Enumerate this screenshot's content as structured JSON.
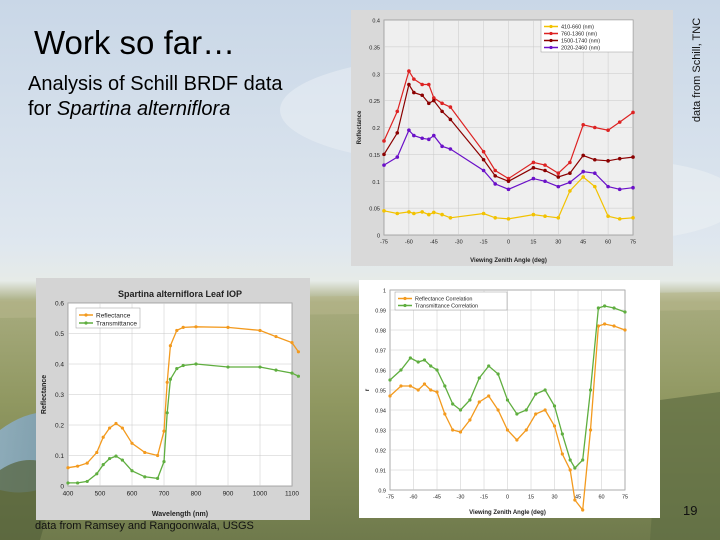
{
  "slide": {
    "title": "Work so far…",
    "subtitle_line1": "Analysis of Schill BRDF data",
    "subtitle_line2_prefix": "for ",
    "subtitle_line2_italic": "Spartina alterniflora",
    "credit_right": "data from Schill, TNC",
    "credit_bottom": "data from Ramsey and Rangoonwala, USGS",
    "page_number": "19"
  },
  "chart_data": [
    {
      "type": "line",
      "title": "",
      "xlabel": "Viewing Zenith Angle (deg)",
      "ylabel": "Reflectance",
      "xlim": [
        -75,
        75
      ],
      "ylim": [
        0,
        0.4
      ],
      "xticks": [
        "-75",
        "-60",
        "-45",
        "-30",
        "-15",
        "0",
        "15",
        "30",
        "45",
        "60",
        "75"
      ],
      "yticks": [
        "0",
        "0.05",
        "0.1",
        "0.15",
        "0.2",
        "0.25",
        "0.3",
        "0.35",
        "0.4"
      ],
      "grid": true,
      "legend_position": "top-right",
      "series": [
        {
          "name": "410-660 (nm)",
          "color": "#f2c200",
          "x": [
            -75,
            -67,
            -60,
            -57,
            -52,
            -48,
            -45,
            -40,
            -35,
            -15,
            -8,
            0,
            15,
            22,
            30,
            37,
            45,
            52,
            60,
            67,
            75
          ],
          "y": [
            0.045,
            0.04,
            0.043,
            0.04,
            0.043,
            0.038,
            0.042,
            0.038,
            0.032,
            0.04,
            0.032,
            0.03,
            0.038,
            0.035,
            0.032,
            0.082,
            0.108,
            0.09,
            0.035,
            0.03,
            0.032
          ]
        },
        {
          "name": "760-1360 (nm)",
          "color": "#dd2222",
          "x": [
            -75,
            -67,
            -60,
            -57,
            -52,
            -48,
            -45,
            -40,
            -35,
            -15,
            -8,
            0,
            15,
            22,
            30,
            37,
            45,
            52,
            60,
            67,
            75
          ],
          "y": [
            0.175,
            0.23,
            0.305,
            0.29,
            0.28,
            0.28,
            0.255,
            0.245,
            0.238,
            0.155,
            0.12,
            0.105,
            0.135,
            0.13,
            0.115,
            0.135,
            0.205,
            0.2,
            0.195,
            0.21,
            0.228
          ]
        },
        {
          "name": "1500-1740 (nm)",
          "color": "#8b0000",
          "x": [
            -75,
            -67,
            -60,
            -57,
            -52,
            -48,
            -45,
            -40,
            -35,
            -15,
            -8,
            0,
            15,
            22,
            30,
            37,
            45,
            52,
            60,
            67,
            75
          ],
          "y": [
            0.15,
            0.19,
            0.28,
            0.265,
            0.26,
            0.245,
            0.25,
            0.23,
            0.215,
            0.14,
            0.11,
            0.1,
            0.125,
            0.12,
            0.108,
            0.115,
            0.148,
            0.14,
            0.138,
            0.142,
            0.145
          ]
        },
        {
          "name": "2020-2460 (nm)",
          "color": "#6a10c8",
          "x": [
            -75,
            -67,
            -60,
            -57,
            -52,
            -48,
            -45,
            -40,
            -35,
            -15,
            -8,
            0,
            15,
            22,
            30,
            37,
            45,
            52,
            60,
            67,
            75
          ],
          "y": [
            0.13,
            0.145,
            0.195,
            0.185,
            0.18,
            0.178,
            0.185,
            0.165,
            0.16,
            0.12,
            0.095,
            0.085,
            0.105,
            0.1,
            0.09,
            0.098,
            0.118,
            0.115,
            0.09,
            0.085,
            0.088
          ]
        }
      ]
    },
    {
      "type": "line",
      "title": "Spartina alterniflora Leaf IOP",
      "xlabel": "Wavelength (nm)",
      "ylabel": "Reflectance",
      "xlim": [
        400,
        1100
      ],
      "ylim": [
        0,
        0.6
      ],
      "xticks": [
        "400",
        "500",
        "600",
        "700",
        "800",
        "900",
        "1000",
        "1100"
      ],
      "yticks": [
        "0",
        "0.1",
        "0.2",
        "0.3",
        "0.4",
        "0.5",
        "0.6"
      ],
      "grid": true,
      "legend_position": "top-left",
      "series": [
        {
          "name": "Reflectance",
          "color": "#f39a1e",
          "x": [
            400,
            430,
            460,
            490,
            510,
            530,
            550,
            570,
            600,
            640,
            680,
            700,
            710,
            720,
            740,
            760,
            800,
            900,
            1000,
            1050,
            1100,
            1120
          ],
          "y": [
            0.06,
            0.065,
            0.075,
            0.11,
            0.16,
            0.19,
            0.205,
            0.19,
            0.14,
            0.11,
            0.1,
            0.18,
            0.34,
            0.46,
            0.51,
            0.52,
            0.522,
            0.52,
            0.51,
            0.49,
            0.47,
            0.44
          ]
        },
        {
          "name": "Transmittance",
          "color": "#5fae3f",
          "x": [
            400,
            430,
            460,
            490,
            510,
            530,
            550,
            570,
            600,
            640,
            680,
            700,
            710,
            720,
            740,
            760,
            800,
            900,
            1000,
            1050,
            1100,
            1120
          ],
          "y": [
            0.01,
            0.01,
            0.015,
            0.04,
            0.07,
            0.09,
            0.098,
            0.085,
            0.05,
            0.03,
            0.025,
            0.08,
            0.24,
            0.35,
            0.385,
            0.395,
            0.4,
            0.39,
            0.39,
            0.38,
            0.37,
            0.36
          ]
        }
      ]
    },
    {
      "type": "line",
      "title": "",
      "xlabel": "Viewing Zenith Angle (deg)",
      "ylabel": "r",
      "xlim": [
        -75,
        75
      ],
      "ylim": [
        0.9,
        1
      ],
      "xticks": [
        "-75",
        "-60",
        "-45",
        "-30",
        "-15",
        "0",
        "15",
        "30",
        "45",
        "60",
        "75"
      ],
      "yticks": [
        "0.9",
        "0.91",
        "0.92",
        "0.93",
        "0.94",
        "0.95",
        "0.96",
        "0.97",
        "0.98",
        "0.99",
        "1"
      ],
      "grid": true,
      "legend_position": "top-left",
      "series": [
        {
          "name": "Reflectance Correlation",
          "color": "#f39a1e",
          "x": [
            -75,
            -68,
            -62,
            -57,
            -53,
            -49,
            -45,
            -40,
            -35,
            -30,
            -24,
            -18,
            -12,
            -6,
            0,
            6,
            12,
            18,
            24,
            30,
            35,
            40,
            43,
            48,
            53,
            58,
            62,
            68,
            75
          ],
          "y": [
            0.947,
            0.952,
            0.952,
            0.95,
            0.953,
            0.95,
            0.949,
            0.938,
            0.93,
            0.929,
            0.935,
            0.944,
            0.947,
            0.94,
            0.93,
            0.925,
            0.93,
            0.938,
            0.94,
            0.932,
            0.918,
            0.91,
            0.895,
            0.89,
            0.93,
            0.982,
            0.983,
            0.982,
            0.98
          ]
        },
        {
          "name": "Transmittance Correlation",
          "color": "#5fae3f",
          "x": [
            -75,
            -68,
            -62,
            -57,
            -53,
            -49,
            -45,
            -40,
            -35,
            -30,
            -24,
            -18,
            -12,
            -6,
            0,
            6,
            12,
            18,
            24,
            30,
            35,
            40,
            43,
            48,
            53,
            58,
            62,
            68,
            75
          ],
          "y": [
            0.955,
            0.96,
            0.966,
            0.964,
            0.965,
            0.962,
            0.96,
            0.952,
            0.943,
            0.94,
            0.945,
            0.956,
            0.962,
            0.958,
            0.945,
            0.938,
            0.94,
            0.948,
            0.95,
            0.942,
            0.928,
            0.915,
            0.911,
            0.915,
            0.95,
            0.991,
            0.992,
            0.991,
            0.989
          ]
        }
      ]
    }
  ]
}
